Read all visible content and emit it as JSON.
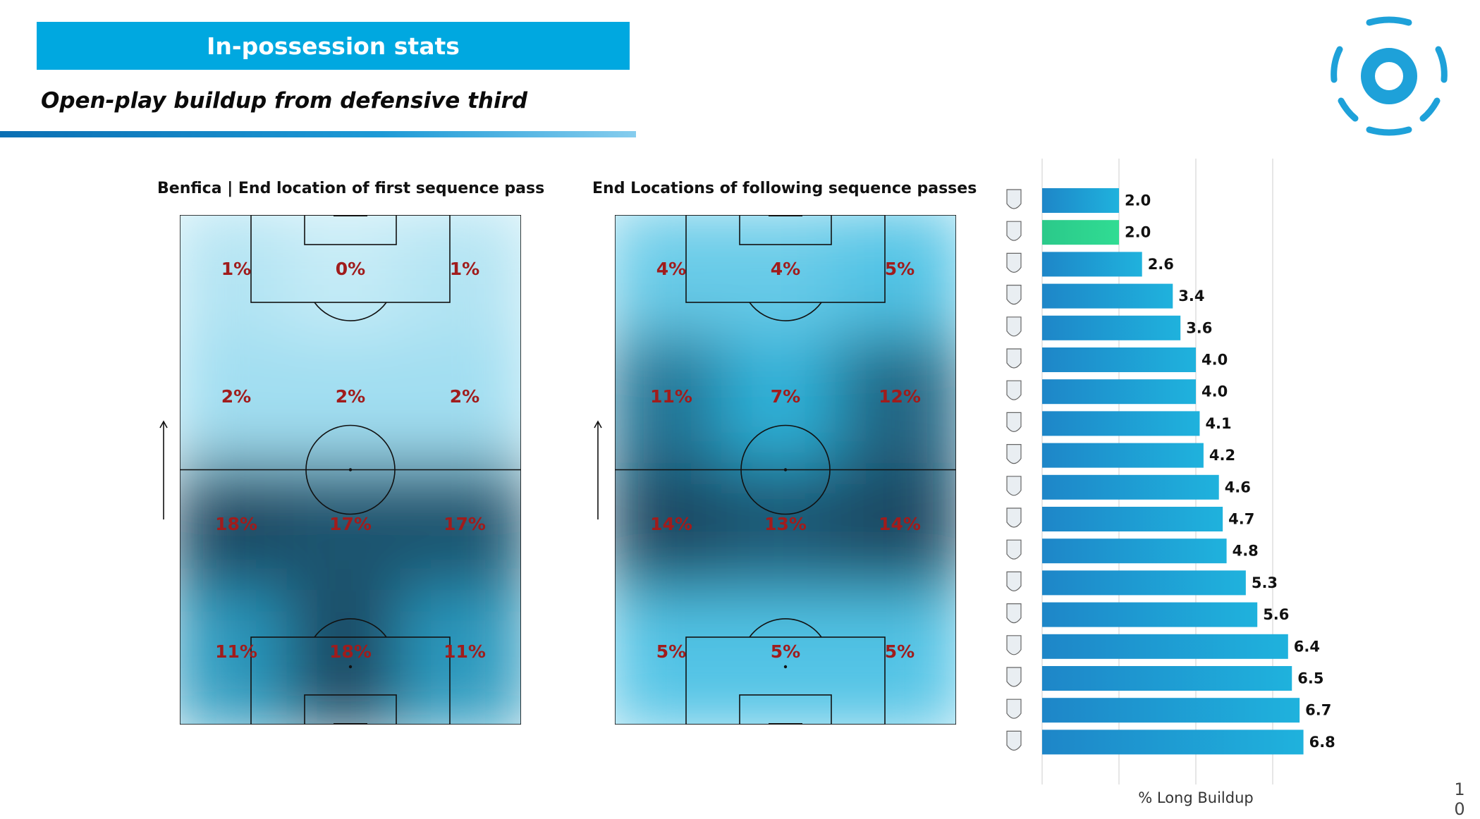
{
  "header": {
    "banner_title": "In-possession stats",
    "subtitle": "Open-play buildup from defensive third"
  },
  "colors": {
    "banner": "#00a8e0",
    "bar": "#1e9ad6",
    "bar_highlight": "#2fd48f",
    "percent_label": "#a01c1c",
    "heat_low": "#f4fbfd",
    "heat_mid": "#2fb7e0",
    "heat_high": "#173a52"
  },
  "page_number": [
    "1",
    "0"
  ],
  "chart_data": [
    {
      "type": "heatmap",
      "title": "Benfica | End location of first sequence pass",
      "attack_direction": "up",
      "zones": [
        [
          "1%",
          "0%",
          "1%"
        ],
        [
          "2%",
          "2%",
          "2%"
        ],
        [
          "18%",
          "17%",
          "17%"
        ],
        [
          "11%",
          "18%",
          "11%"
        ]
      ],
      "values": [
        [
          1,
          0,
          1
        ],
        [
          2,
          2,
          2
        ],
        [
          18,
          17,
          17
        ],
        [
          11,
          18,
          11
        ]
      ]
    },
    {
      "type": "heatmap",
      "title": "End Locations of following sequence passes",
      "attack_direction": "up",
      "zones": [
        [
          "4%",
          "4%",
          "5%"
        ],
        [
          "11%",
          "7%",
          "12%"
        ],
        [
          "14%",
          "13%",
          "14%"
        ],
        [
          "5%",
          "5%",
          "5%"
        ]
      ],
      "values": [
        [
          4,
          4,
          5
        ],
        [
          11,
          7,
          12
        ],
        [
          14,
          13,
          14
        ],
        [
          5,
          5,
          5
        ]
      ]
    },
    {
      "type": "bar",
      "orientation": "horizontal",
      "xlabel": "% Long Buildup",
      "xlim": [
        0,
        9
      ],
      "grid": true,
      "categories": [
        "team-crest-1",
        "team-crest-2",
        "team-crest-3",
        "team-crest-4",
        "team-crest-5",
        "team-crest-6",
        "team-crest-7",
        "team-crest-8",
        "team-crest-9",
        "team-crest-10",
        "team-crest-11",
        "team-crest-12",
        "team-crest-13",
        "team-crest-14",
        "team-crest-15",
        "team-crest-16",
        "team-crest-17",
        "team-crest-18"
      ],
      "values": [
        2.0,
        2.0,
        2.6,
        3.4,
        3.6,
        4.0,
        4.0,
        4.1,
        4.2,
        4.6,
        4.7,
        4.8,
        5.3,
        5.6,
        6.4,
        6.5,
        6.7,
        6.8
      ],
      "value_labels": [
        "2.0",
        "2.0",
        "2.6",
        "3.4",
        "3.6",
        "4.0",
        "4.0",
        "4.1",
        "4.2",
        "4.6",
        "4.7",
        "4.8",
        "5.3",
        "5.6",
        "6.4",
        "6.5",
        "6.7",
        "6.8"
      ],
      "highlight_index": 1
    }
  ]
}
